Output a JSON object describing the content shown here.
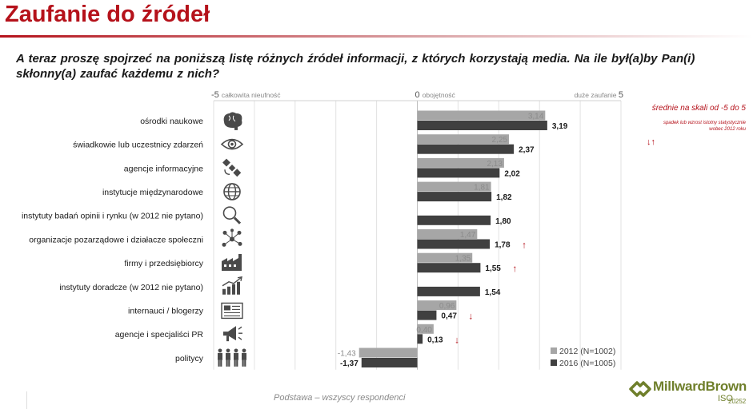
{
  "page": {
    "title": "Zaufanie do źródeł",
    "question": "A teraz proszę spojrzeć na poniższą listę różnych źródeł informacji, z których korzystają media. Na ile był(a)by Pan(i) skłonny(a) zaufać każdemu z nich?",
    "footnote": "Podstawa – wszyscy respondenci",
    "scale_note": "średnie na skali od -5 do 5",
    "significance_note": "spadek lub wzrost istotny statystycznie wobec 2012 roku",
    "brand_name": "MillwardBrown",
    "brand_iso": "ISO",
    "brand_iso_number": "20252",
    "colors": {
      "accent": "#b5121b",
      "series_2012": "#a6a6a6",
      "series_2016": "#404040",
      "brand": "#6f7f2b"
    }
  },
  "chart_data": {
    "type": "bar",
    "orientation": "horizontal",
    "xlim": [
      -5,
      5
    ],
    "axis_labels": [
      {
        "value": -5,
        "number": "-5",
        "text": "całkowita nieufność"
      },
      {
        "value": 0,
        "number": "0",
        "text": "obojętność"
      },
      {
        "value": 5,
        "number": "5",
        "text": "duże zaufanie"
      }
    ],
    "grid": true,
    "legend_position": "bottom-right",
    "categories": [
      {
        "label": "ośrodki naukowe",
        "icon": "brain-icon"
      },
      {
        "label": "świadkowie lub uczestnicy zdarzeń",
        "icon": "eye-icon"
      },
      {
        "label": "agencje informacyjne",
        "icon": "satellite-icon"
      },
      {
        "label": "instytucje międzynarodowe",
        "icon": "globe-icon"
      },
      {
        "label": "instytuty badań opinii i rynku (w 2012 nie pytano)",
        "icon": "magnifier-icon"
      },
      {
        "label": "organizacje pozarządowe i działacze społeczni",
        "icon": "network-icon"
      },
      {
        "label": "firmy i przedsiębiorcy",
        "icon": "factory-icon"
      },
      {
        "label": "instytuty doradcze (w 2012 nie pytano)",
        "icon": "growth-chart-icon"
      },
      {
        "label": "internauci / blogerzy",
        "icon": "newspaper-icon"
      },
      {
        "label": "agencje i specjaliści PR",
        "icon": "megaphone-icon"
      },
      {
        "label": "politycy",
        "icon": "people-icon"
      }
    ],
    "series": [
      {
        "name": "2012 (N=1002)",
        "values": [
          3.14,
          2.25,
          2.13,
          1.81,
          null,
          1.47,
          1.35,
          null,
          0.96,
          0.4,
          -1.43
        ],
        "labels": [
          "3,14",
          "2,25",
          "2,13",
          "1,81",
          "",
          "1,47",
          "1,35",
          "",
          "0,96",
          "0,40",
          "-1,43"
        ]
      },
      {
        "name": "2016 (N=1005)",
        "values": [
          3.19,
          2.37,
          2.02,
          1.82,
          1.8,
          1.78,
          1.55,
          1.54,
          0.47,
          0.13,
          -1.37
        ],
        "labels": [
          "3,19",
          "2,37",
          "2,02",
          "1,82",
          "1,80",
          "1,78",
          "1,55",
          "1,54",
          "0,47",
          "0,13",
          "-1,37"
        ]
      }
    ],
    "significance": [
      null,
      null,
      null,
      null,
      null,
      "up",
      "up",
      null,
      "down",
      "down",
      null
    ]
  }
}
